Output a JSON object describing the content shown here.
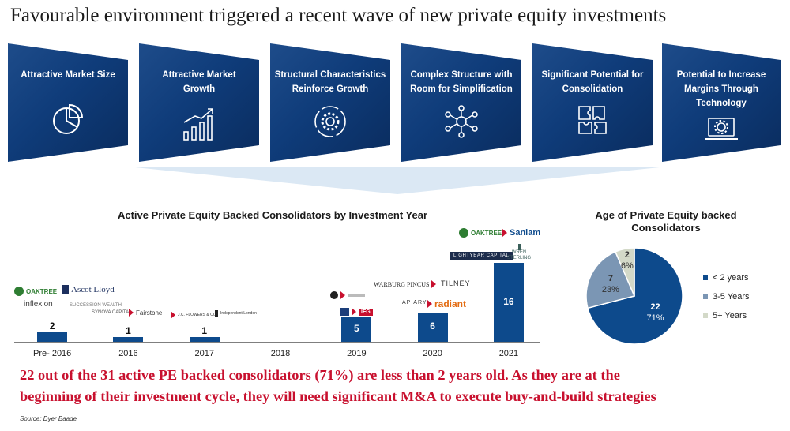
{
  "title": "Favourable environment triggered a recent wave of new private equity investments",
  "drivers": [
    {
      "line1": "Attractive Market Size",
      "line2": "",
      "icon": "pie-chart-icon"
    },
    {
      "line1": "Attractive Market",
      "line2": "Growth",
      "icon": "growth-bars-icon"
    },
    {
      "line1": "Structural Characteristics",
      "line2": "Reinforce Growth",
      "icon": "gear-cycle-icon"
    },
    {
      "line1": "Complex Structure with",
      "line2": "Room for Simplification",
      "icon": "network-nodes-icon"
    },
    {
      "line1": "Significant Potential for",
      "line2": "Consolidation",
      "icon": "puzzle-icon"
    },
    {
      "line1": "Potential to Increase",
      "line2": "Margins Through",
      "line3": "Technology",
      "icon": "laptop-gear-icon"
    }
  ],
  "colors": {
    "navy": "#0d4a8c",
    "red": "#c8102e",
    "mid_blue": "#7b96b4",
    "light_grey": "#d3d9c8"
  },
  "chart_data": [
    {
      "type": "bar",
      "title": "Active Private Equity Backed Consolidators by Investment Year",
      "categories": [
        "Pre- 2016",
        "2016",
        "2017",
        "2018",
        "2019",
        "2020",
        "2021"
      ],
      "values": [
        2,
        1,
        1,
        0,
        5,
        6,
        16
      ],
      "data_labels": [
        "2",
        "1",
        "1",
        "",
        "5",
        "6",
        "16"
      ],
      "ylim": [
        0,
        16
      ],
      "xlabel": "",
      "ylabel": ""
    },
    {
      "type": "pie",
      "title_line1": "Age of Private Equity backed",
      "title_line2": "Consolidators",
      "slices": [
        {
          "label": "< 2 years",
          "value": 22,
          "percent": "71%"
        },
        {
          "label": "3-5 Years",
          "value": 7,
          "percent": "23%"
        },
        {
          "label": "5+ Years",
          "value": 2,
          "percent": "6%"
        }
      ]
    }
  ],
  "logos": {
    "oaktree": "OAKTREE",
    "ascot": "Ascot Lloyd",
    "inflexion": "inflexion",
    "succession": "SUCCESSION WEALTH",
    "synova": "SYNOVA CAPITAL",
    "fairstone": "Fairstone",
    "flowers": "J.C. FLOWERS & CO.",
    "lumenwise": "Independent London",
    "warburg": "WARBURG PINCUS",
    "tilney": "TILNEY",
    "apiary": "APIARY",
    "radiant": "radiant",
    "ifg": "IFG",
    "sanlam": "Sanlam",
    "lightyear": "LIGHTYEAR CAPITAL",
    "wren1": "WREN",
    "wren2": "STERLING"
  },
  "conclusion_line1": "22 out of the 31 active PE backed consolidators (71%)  are less than 2 years old. As they are at the",
  "conclusion_line2": "beginning of their investment cycle, they will need significant M&A to execute buy-and-build strategies",
  "source": "Source: Dyer Baade"
}
